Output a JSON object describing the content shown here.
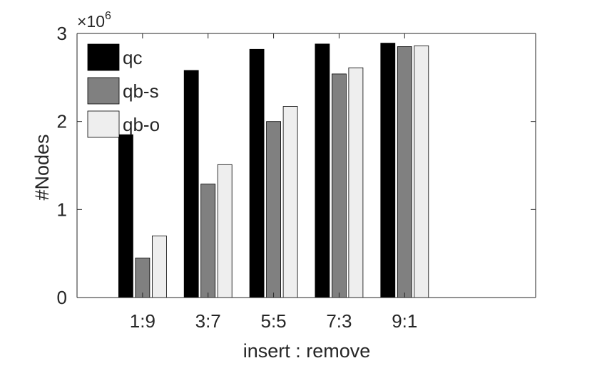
{
  "chart_data": {
    "type": "bar",
    "title": "",
    "xlabel": "insert : remove",
    "ylabel": "#Nodes",
    "y_scale_base": "×10",
    "y_scale_exponent": "6",
    "categories": [
      "1:9",
      "3:7",
      "5:5",
      "7:3",
      "9:1"
    ],
    "ylim": [
      0,
      3
    ],
    "yticks": [
      "0",
      "1",
      "2",
      "3"
    ],
    "legend_position": "top-left",
    "series": [
      {
        "name": "qc",
        "color": "#000000",
        "values": [
          1.85,
          2.58,
          2.82,
          2.88,
          2.89
        ]
      },
      {
        "name": "qb-s",
        "color": "#808080",
        "values": [
          0.45,
          1.29,
          2.0,
          2.54,
          2.85
        ]
      },
      {
        "name": "qb-o",
        "color": "#eeeeee",
        "values": [
          0.7,
          1.51,
          2.17,
          2.61,
          2.86
        ]
      }
    ]
  }
}
